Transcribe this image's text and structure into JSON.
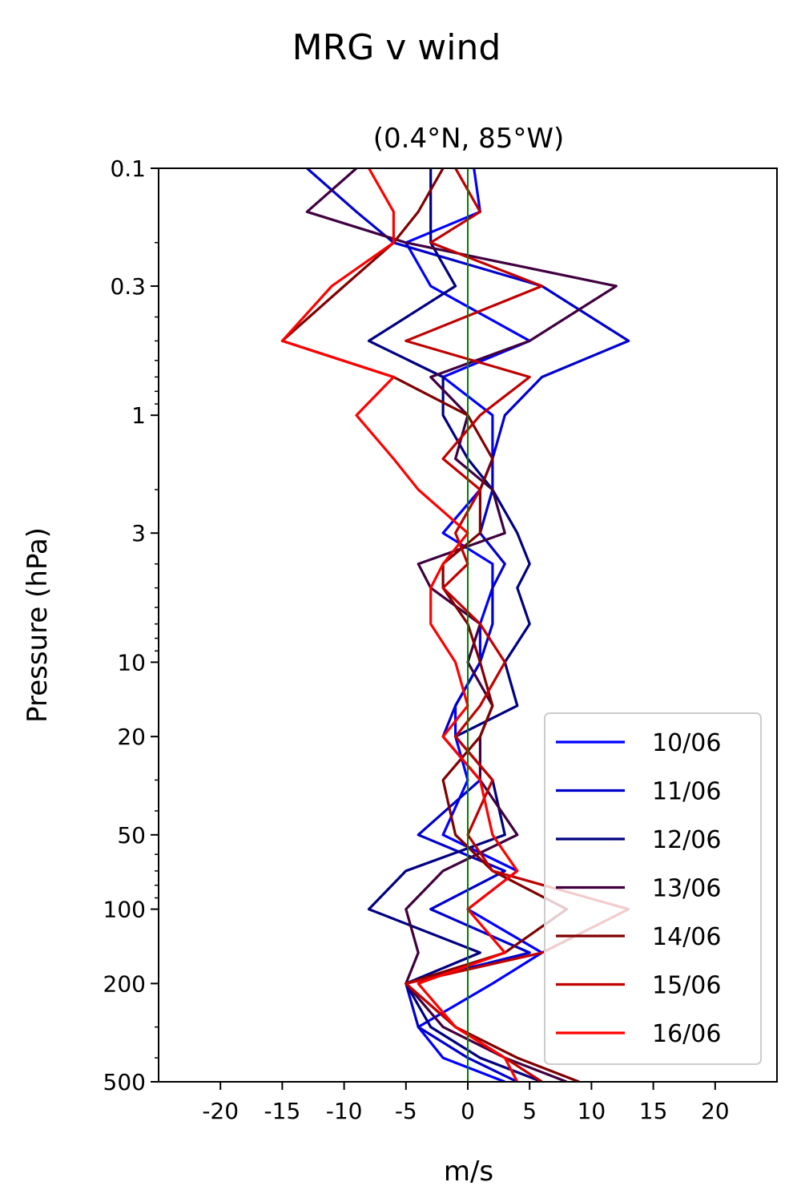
{
  "chart_data": {
    "type": "line",
    "title": "MRG v wind",
    "subtitle": "(0.4°N, 85°W)",
    "xlabel": "m/s",
    "ylabel": "Pressure (hPa)",
    "xlim": [
      -25,
      25
    ],
    "ylim": [
      500,
      0.1
    ],
    "y_scale": "log",
    "x_ticks": [
      -20,
      -15,
      -10,
      -5,
      0,
      5,
      10,
      15,
      20
    ],
    "x_tick_labels": [
      "-20",
      "-15",
      "-10",
      "-5",
      "0",
      "5",
      "10",
      "15",
      "20"
    ],
    "y_ticks": [
      0.1,
      0.3,
      1,
      3,
      10,
      20,
      50,
      100,
      200,
      500
    ],
    "y_tick_labels": [
      "0.1",
      "0.3",
      "1",
      "3",
      "10",
      "20",
      "50",
      "100",
      "200",
      "500"
    ],
    "reference_line": {
      "x": 0,
      "color": "#008000"
    },
    "grid": false,
    "legend_position": "lower-right",
    "y_levels": [
      0.1,
      0.15,
      0.2,
      0.3,
      0.5,
      0.7,
      1,
      1.5,
      2,
      3,
      4,
      5,
      7,
      10,
      15,
      20,
      30,
      50,
      70,
      100,
      150,
      200,
      300,
      400,
      500
    ],
    "series": [
      {
        "name": "10/06",
        "color": "#0000ff",
        "values": [
          0.5,
          1,
          -5,
          -3,
          5,
          -2,
          2,
          2,
          1,
          -2,
          2,
          2,
          1,
          1,
          -1,
          -1,
          0,
          -2,
          4,
          0,
          6,
          2,
          -4,
          -2,
          3
        ]
      },
      {
        "name": "11/06",
        "color": "#0000cc",
        "values": [
          -13,
          -9,
          -6,
          6,
          13,
          6,
          3,
          2,
          2,
          1,
          3,
          2,
          2,
          1,
          -1,
          -2,
          1,
          -4,
          3,
          -3,
          5,
          -5,
          -4,
          0,
          4
        ]
      },
      {
        "name": "12/06",
        "color": "#000080",
        "values": [
          -3,
          -3,
          -3,
          -1,
          -8,
          -2,
          -2,
          0,
          2,
          4,
          5,
          4,
          5,
          3,
          4,
          -1,
          2,
          3,
          -5,
          -8,
          1,
          -5,
          -3,
          1,
          6
        ]
      },
      {
        "name": "13/06",
        "color": "#400040",
        "values": [
          -9,
          -13,
          -5,
          12,
          5,
          -3,
          0,
          -1,
          2,
          3,
          -4,
          -3,
          1,
          0,
          2,
          1,
          1,
          4,
          -2,
          -5,
          -4,
          -5,
          -2,
          3,
          8
        ]
      },
      {
        "name": "14/06",
        "color": "#800000",
        "values": [
          -2,
          -4,
          -6,
          -10,
          -15,
          -6,
          0,
          2,
          1,
          1,
          -2,
          -2,
          0,
          1,
          2,
          1,
          -2,
          -1,
          2,
          8,
          3,
          -5,
          -1,
          4,
          9
        ]
      },
      {
        "name": "15/06",
        "color": "#c00000",
        "values": [
          -1,
          1,
          -3,
          6,
          -5,
          5,
          1,
          -2,
          1,
          -1,
          0,
          -2,
          1,
          3,
          1,
          -1,
          2,
          0,
          2,
          13,
          6,
          -5,
          -1,
          3,
          6
        ]
      },
      {
        "name": "16/06",
        "color": "#ff0000",
        "values": [
          -8,
          -6,
          -6,
          -11,
          -15,
          -6,
          -9,
          -6,
          -4,
          0,
          -2,
          -3,
          -3,
          -1,
          0,
          -2,
          1,
          2,
          4,
          0,
          3,
          -4,
          -1,
          3,
          4
        ]
      }
    ]
  }
}
